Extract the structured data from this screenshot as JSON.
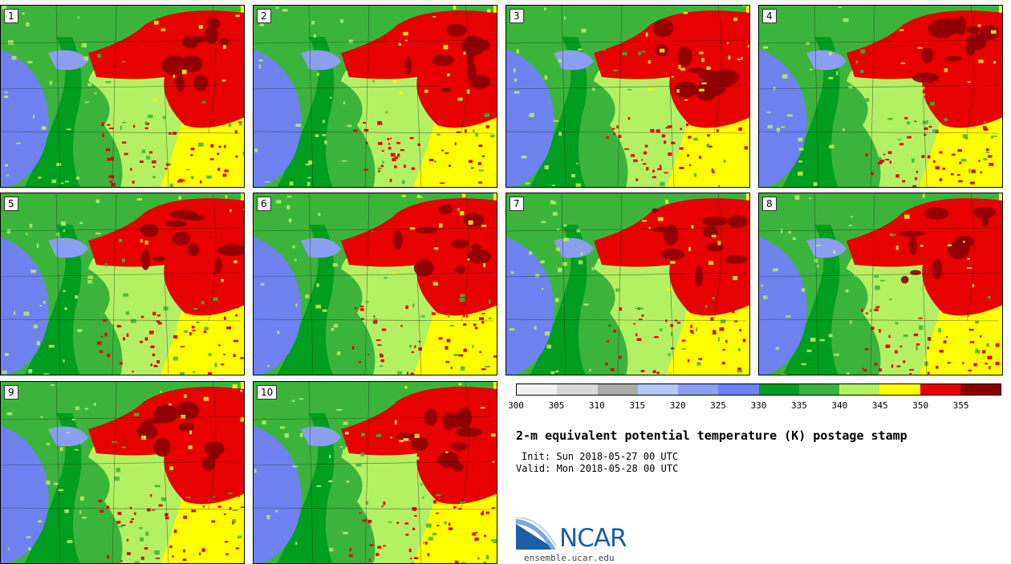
{
  "panels": [
    {
      "label": "1",
      "seed": 11
    },
    {
      "label": "2",
      "seed": 23
    },
    {
      "label": "3",
      "seed": 37
    },
    {
      "label": "4",
      "seed": 41
    },
    {
      "label": "5",
      "seed": 53
    },
    {
      "label": "6",
      "seed": 67
    },
    {
      "label": "7",
      "seed": 71
    },
    {
      "label": "8",
      "seed": 89
    },
    {
      "label": "9",
      "seed": 97
    },
    {
      "label": "10",
      "seed": 103
    }
  ],
  "colorbar": {
    "colors": [
      "#f0f0f0",
      "#d8d8d8",
      "#aaaaaa",
      "#b4c8f8",
      "#8c9ef0",
      "#6d82ee",
      "#009e1e",
      "#3cb43c",
      "#b4f064",
      "#ffff00",
      "#e60000",
      "#8c0000"
    ],
    "ticks": [
      "300",
      "305",
      "310",
      "315",
      "320",
      "325",
      "330",
      "335",
      "340",
      "345",
      "350",
      "355"
    ]
  },
  "title": "2-m equivalent potential temperature (K) postage stamp",
  "init": "Init: Sun 2018-05-27 00 UTC",
  "valid": "Valid: Mon 2018-05-28 00 UTC",
  "logo": {
    "text": "NCAR"
  },
  "site": "ensemble.ucar.edu"
}
